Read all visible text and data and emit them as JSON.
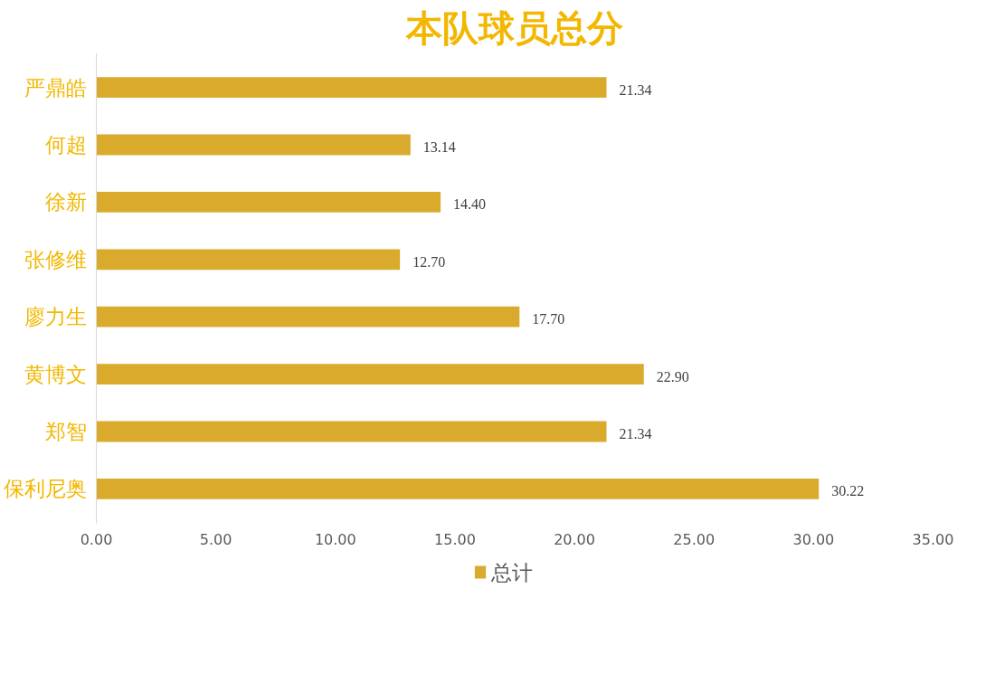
{
  "chart_data": {
    "type": "bar",
    "orientation": "horizontal",
    "title": "本队球员总分",
    "categories": [
      "严鼎皓",
      "何超",
      "徐新",
      "张修维",
      "廖力生",
      "黄博文",
      "郑智",
      "保利尼奥"
    ],
    "series": [
      {
        "name": "总计",
        "color": "#d9aa2c",
        "values": [
          21.34,
          13.14,
          14.4,
          12.7,
          17.7,
          22.9,
          21.34,
          30.22
        ],
        "value_labels": [
          "21.34",
          "13.14",
          "14.40",
          "12.70",
          "17.70",
          "22.90",
          "21.34",
          "30.22"
        ]
      }
    ],
    "xlim": [
      0,
      35
    ],
    "xticks": [
      {
        "value": 0,
        "label": "0.00"
      },
      {
        "value": 5,
        "label": "5.00"
      },
      {
        "value": 10,
        "label": "10.00"
      },
      {
        "value": 15,
        "label": "15.00"
      },
      {
        "value": 20,
        "label": "20.00"
      },
      {
        "value": 25,
        "label": "25.00"
      },
      {
        "value": 30,
        "label": "30.00"
      },
      {
        "value": 35,
        "label": "35.00"
      }
    ],
    "data_labels": true,
    "grid": false,
    "legend": "bottom"
  }
}
